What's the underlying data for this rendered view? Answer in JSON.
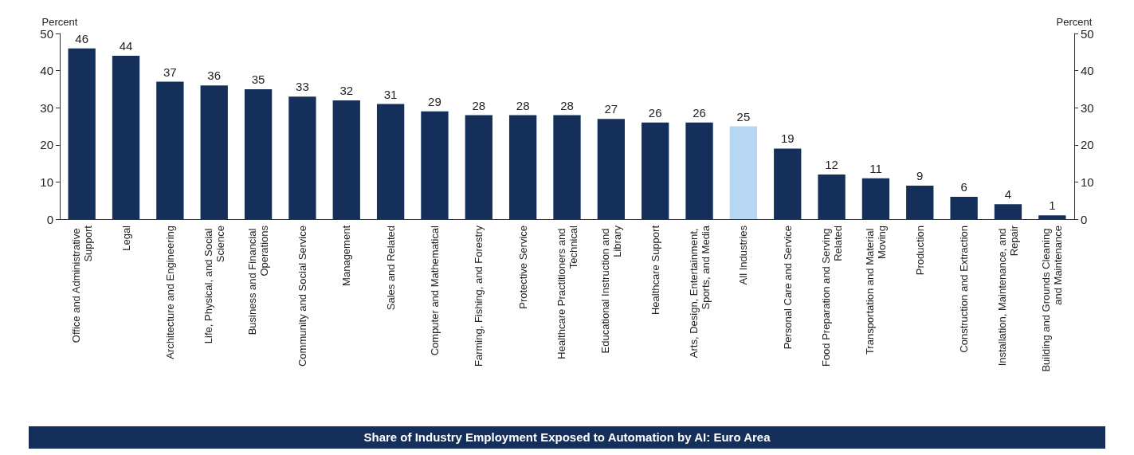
{
  "chart_data": {
    "type": "bar",
    "title": "Share of Industry Employment Exposed to Automation by AI: Euro Area",
    "ylabel": "Percent",
    "y2label": "Percent",
    "categories": [
      "Office and Administrative Support",
      "Legal",
      "Architecture and Engineering",
      "Life, Physical, and Social Science",
      "Business and Financial Operations",
      "Community and Social Service",
      "Management",
      "Sales and Related",
      "Computer and Mathematical",
      "Farming, Fishing, and Forestry",
      "Protective Service",
      "Healthcare Practitioners and Technical",
      "Educational Instruction and Library",
      "Healthcare Support",
      "Arts, Design, Entertainment, Sports, and Media",
      "All Industries",
      "Personal Care and Service",
      "Food Preparation and Serving Related",
      "Transportation and Material Moving",
      "Production",
      "Construction and Extraction",
      "Installation, Maintenance, and Repair",
      "Building and Grounds Cleaning and Maintenance"
    ],
    "values": [
      46,
      44,
      37,
      36,
      35,
      33,
      32,
      31,
      29,
      28,
      28,
      28,
      27,
      26,
      26,
      25,
      19,
      12,
      11,
      9,
      6,
      4,
      1
    ],
    "colors": [
      "#14305a",
      "#14305a",
      "#14305a",
      "#14305a",
      "#14305a",
      "#14305a",
      "#14305a",
      "#14305a",
      "#14305a",
      "#14305a",
      "#14305a",
      "#14305a",
      "#14305a",
      "#14305a",
      "#14305a",
      "#b7d6f2",
      "#14305a",
      "#14305a",
      "#14305a",
      "#14305a",
      "#14305a",
      "#14305a",
      "#14305a"
    ],
    "ylim": [
      0,
      50
    ],
    "yticks": [
      0,
      10,
      20,
      30,
      40,
      50
    ],
    "y2lim": [
      0,
      50
    ],
    "y2ticks": [
      0,
      10,
      20,
      30,
      40,
      50
    ],
    "data_labels": true
  }
}
